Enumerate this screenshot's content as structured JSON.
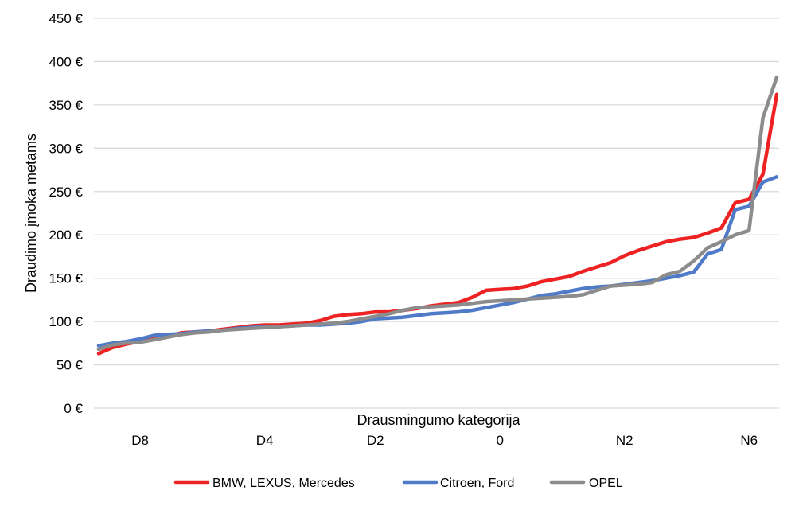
{
  "chart_data": {
    "type": "line",
    "title": "",
    "xlabel": "Drausmingumo kategorija",
    "ylabel": "Draudimo įmoka metams",
    "ylim": [
      0,
      450
    ],
    "yticks": [
      0,
      50,
      100,
      150,
      200,
      250,
      300,
      350,
      400,
      450
    ],
    "ytick_labels": [
      "0 €",
      "50 €",
      "100 €",
      "150 €",
      "200 €",
      "250 €",
      "300 €",
      "350 €",
      "400 €",
      "450 €"
    ],
    "grid": true,
    "legend": "bottom",
    "x_count": 50,
    "category_labels": [
      {
        "index": 3,
        "label": "D8"
      },
      {
        "index": 12,
        "label": "D4"
      },
      {
        "index": 20,
        "label": "D2"
      },
      {
        "index": 29,
        "label": "0"
      },
      {
        "index": 38,
        "label": "N2"
      },
      {
        "index": 47,
        "label": "N6"
      }
    ],
    "series": [
      {
        "name": "BMW, LEXUS, Mercedes",
        "color": "#ee2222",
        "values": [
          63,
          70,
          74,
          77,
          80,
          83,
          87,
          88,
          89,
          91,
          93,
          95,
          96,
          96,
          97,
          98,
          101,
          106,
          108,
          109,
          111,
          111,
          113,
          115,
          118,
          120,
          122,
          128,
          136,
          137,
          138,
          141,
          146,
          149,
          152,
          158,
          163,
          168,
          176,
          182,
          187,
          192,
          195,
          197,
          202,
          208,
          237,
          241,
          270,
          362
        ]
      },
      {
        "name": "Citroen, Ford",
        "color": "#4f7ac7",
        "values": [
          72,
          75,
          77,
          80,
          84,
          85,
          86,
          88,
          89,
          90,
          92,
          93,
          94,
          94,
          95,
          96,
          96,
          97,
          98,
          100,
          103,
          104,
          105,
          107,
          109,
          110,
          111,
          113,
          116,
          119,
          122,
          126,
          130,
          132,
          135,
          138,
          140,
          141,
          143,
          145,
          147,
          150,
          153,
          157,
          178,
          183,
          229,
          233,
          261,
          267
        ]
      },
      {
        "name": "OPEL",
        "color": "#8c8c8c",
        "values": [
          68,
          73,
          75,
          76,
          79,
          82,
          85,
          87,
          88,
          90,
          91,
          92,
          93,
          94,
          95,
          96,
          97,
          98,
          100,
          103,
          106,
          109,
          113,
          116,
          117,
          118,
          119,
          121,
          123,
          124,
          125,
          126,
          127,
          128,
          129,
          131,
          136,
          141,
          142,
          143,
          145,
          154,
          158,
          170,
          185,
          192,
          200,
          205,
          335,
          382
        ]
      }
    ]
  }
}
